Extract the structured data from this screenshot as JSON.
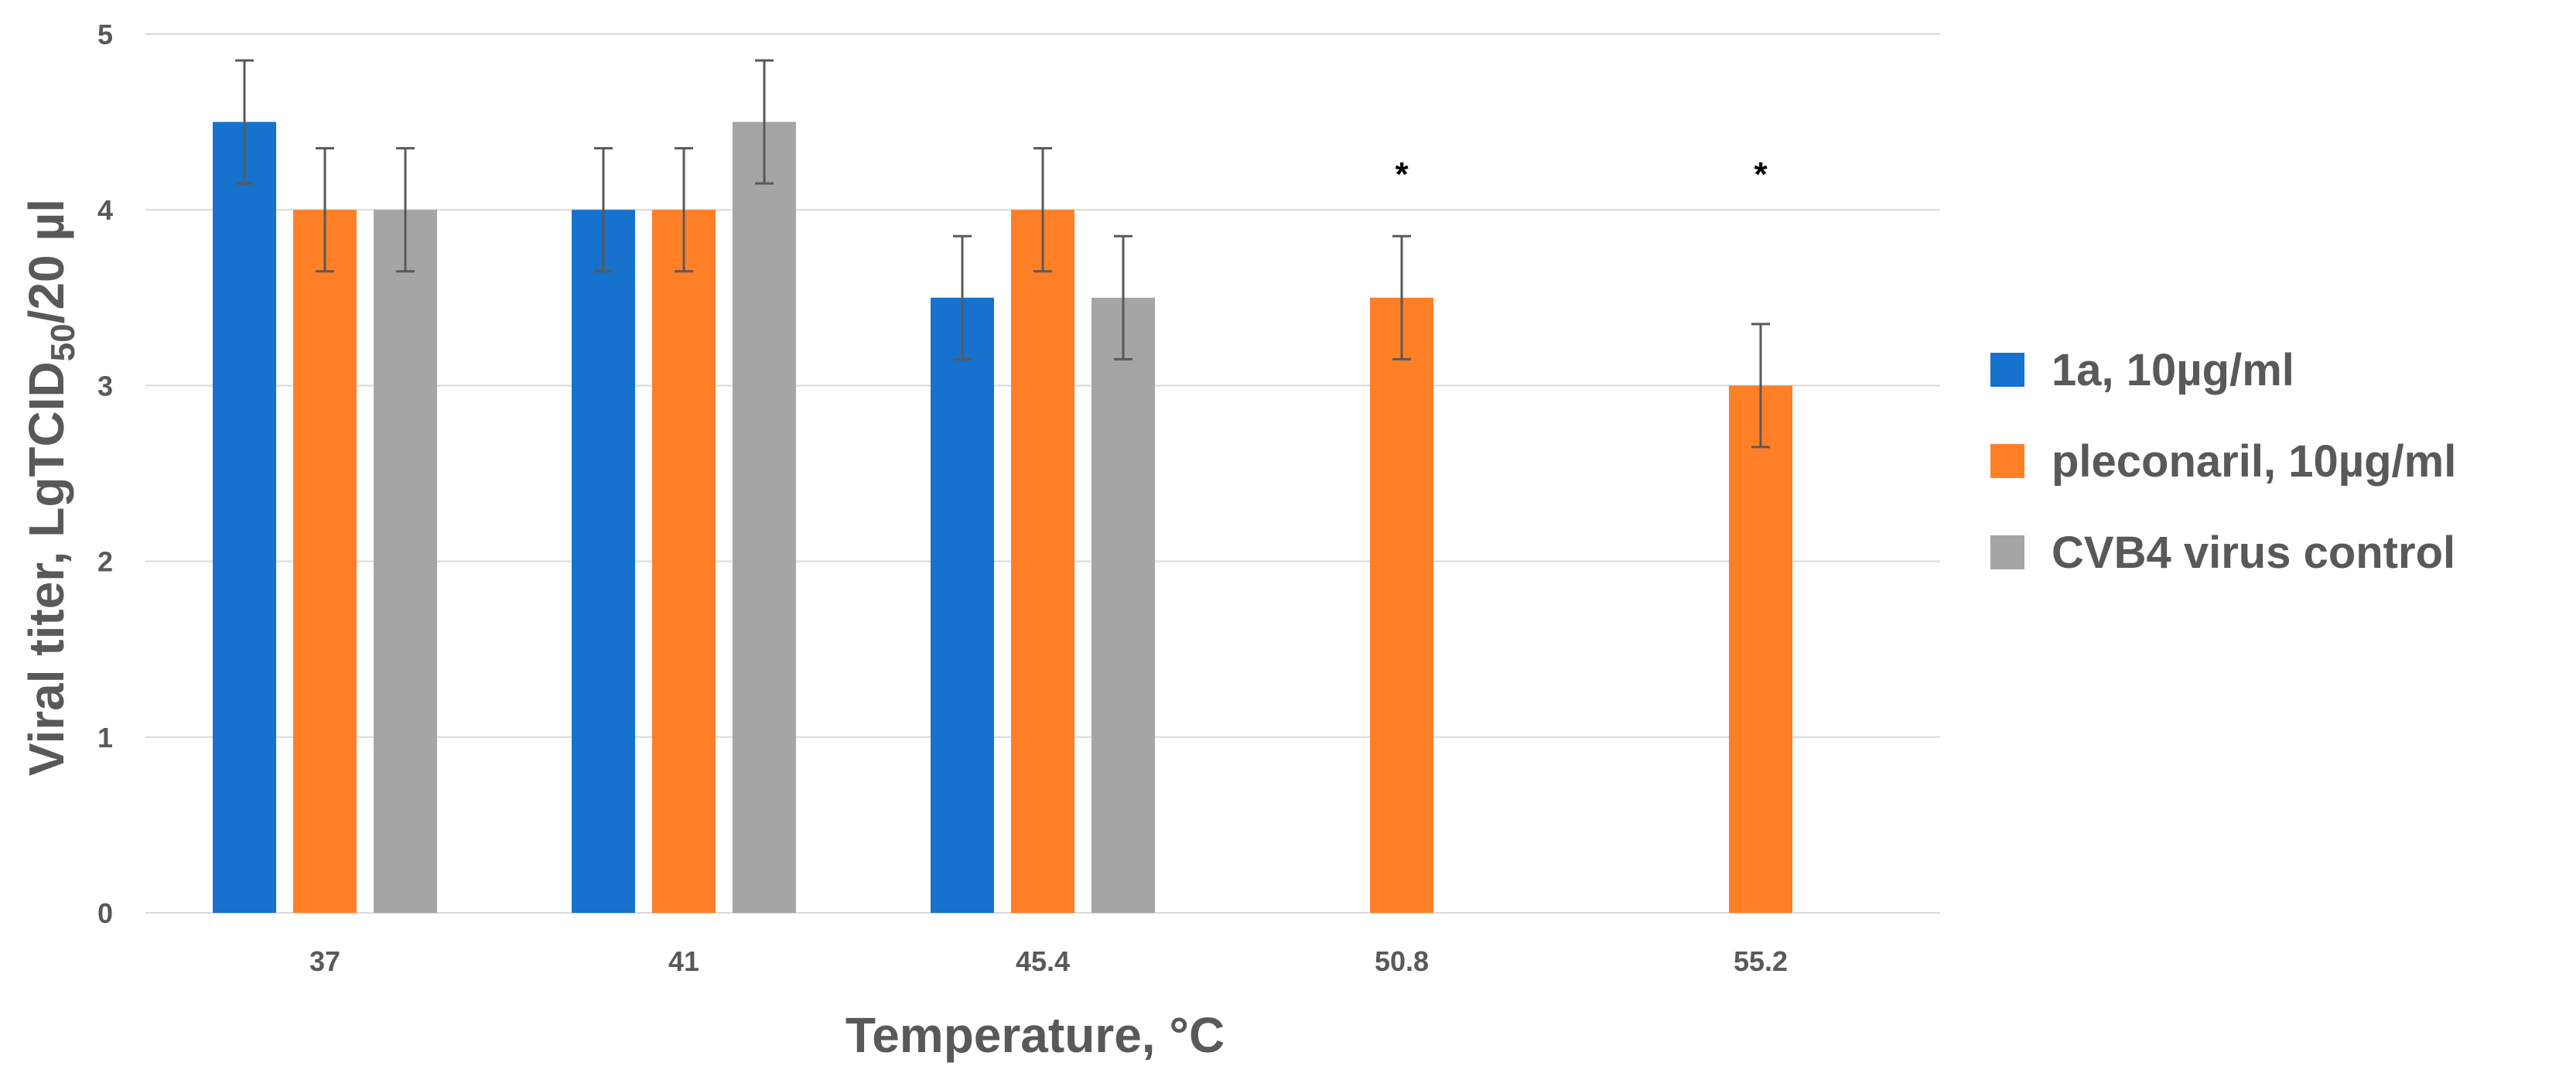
{
  "chart_data": {
    "type": "bar",
    "title": "",
    "xlabel": "Temperature, °C",
    "ylabel": {
      "main": "Viral titer, LgTCID",
      "subscript": "50",
      "suffix": "/20 µl"
    },
    "categories": [
      "37",
      "41",
      "45.4",
      "50.8",
      "55.2"
    ],
    "ylim": [
      0,
      5
    ],
    "yticks": [
      0,
      1,
      2,
      3,
      4,
      5
    ],
    "grid": true,
    "legend_position": "right",
    "series": [
      {
        "name": "1a, 10µg/ml",
        "color": "#1672CC",
        "values": [
          4.5,
          4.0,
          3.5,
          null,
          null
        ],
        "errors": [
          0.35,
          0.35,
          0.35,
          null,
          null
        ]
      },
      {
        "name": "pleconaril, 10µg/ml",
        "color": "#FF7F27",
        "values": [
          4.0,
          4.0,
          4.0,
          3.5,
          3.0
        ],
        "errors": [
          0.35,
          0.35,
          0.35,
          0.35,
          0.35
        ]
      },
      {
        "name": "CVB4 virus control",
        "color": "#A5A5A5",
        "values": [
          4.0,
          4.5,
          3.5,
          null,
          null
        ],
        "errors": [
          0.35,
          0.35,
          0.35,
          null,
          null
        ]
      }
    ],
    "annotations": [
      {
        "category": "50.8",
        "text": "*"
      },
      {
        "category": "55.2",
        "text": "*"
      }
    ],
    "gridline_color": "#D9D9D9",
    "errorbar_color": "#595959"
  }
}
